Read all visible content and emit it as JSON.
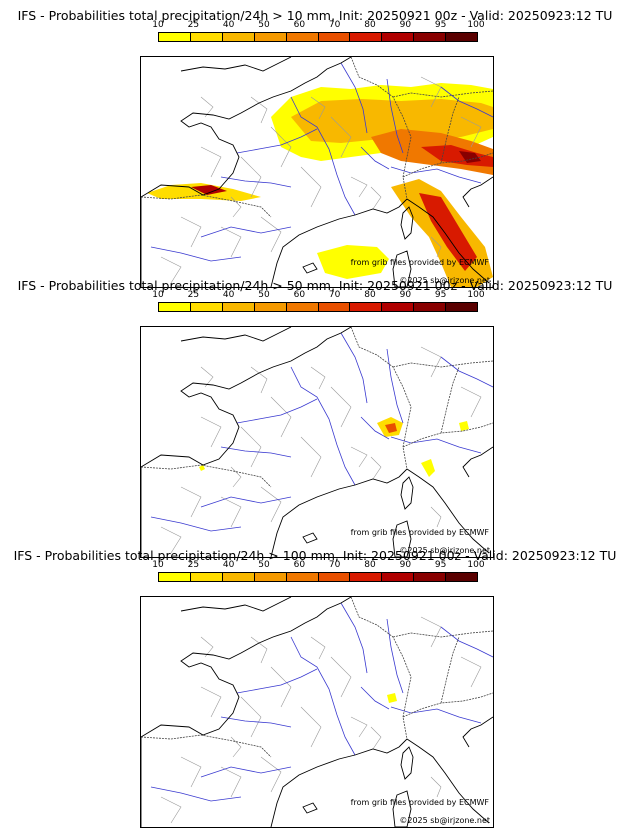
{
  "colorbar": {
    "ticks": [
      "10",
      "25",
      "40",
      "50",
      "60",
      "70",
      "80",
      "90",
      "95",
      "100"
    ],
    "colors": [
      "#ffff00",
      "#ffdd00",
      "#f8b800",
      "#f59a00",
      "#f07800",
      "#e85000",
      "#d81a00",
      "#b00000",
      "#880000",
      "#5a0000"
    ]
  },
  "credit": "from grib files provided by ECMWF",
  "copyright": "©2025 sb@irjzone.net",
  "panels": [
    {
      "title": "IFS - Probabilities total precipitation/24h > 10 mm, Init: 20250921 00z - Valid: 20250923:12 TU",
      "threshold_mm": 10
    },
    {
      "title": "IFS - Probabilities total precipitation/24h > 50 mm, Init: 20250921 00z - Valid: 20250923:12 TU",
      "threshold_mm": 50
    },
    {
      "title": "IFS - Probabilities total precipitation/24h > 100 mm, Init: 20250921 00z - Valid: 20250923:12 TU",
      "threshold_mm": 100
    }
  ]
}
